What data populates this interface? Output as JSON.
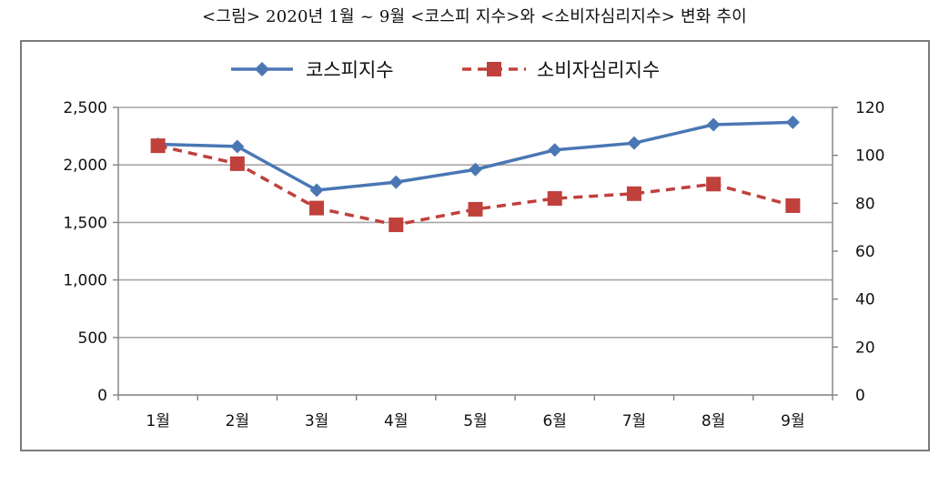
{
  "title": "<그림> 2020년 1월 ~ 9월 <코스피 지수>와 <소비자심리지수> 변화 추이",
  "colors": {
    "kospi": "#4a77b4",
    "csi": "#c0403c",
    "grid": "#a6a6a6",
    "axis": "#808080"
  },
  "chart_data": {
    "type": "line",
    "title": "<그림> 2020년 1월 ~ 9월 <코스피 지수>와 <소비자심리지수> 변화 추이",
    "categories": [
      "1월",
      "2월",
      "3월",
      "4월",
      "5월",
      "6월",
      "7월",
      "8월",
      "9월"
    ],
    "series": [
      {
        "name": "코스피지수",
        "axis": "left",
        "marker": "diamond",
        "line": "solid",
        "values": [
          2180,
          2160,
          1780,
          1850,
          1960,
          2130,
          2190,
          2350,
          2370
        ]
      },
      {
        "name": "소비자심리지수",
        "axis": "right",
        "marker": "square",
        "line": "dashed",
        "values": [
          104,
          96.5,
          78,
          71,
          77.5,
          82,
          84,
          88,
          79
        ]
      }
    ],
    "y_left": {
      "min": 0,
      "max": 2500,
      "ticks": [
        "0",
        "500",
        "1,000",
        "1,500",
        "2,000",
        "2,500"
      ]
    },
    "y_right": {
      "min": 0,
      "max": 120,
      "ticks": [
        "0",
        "20",
        "40",
        "60",
        "80",
        "100",
        "120"
      ]
    },
    "grid": true,
    "legend_position": "top"
  }
}
